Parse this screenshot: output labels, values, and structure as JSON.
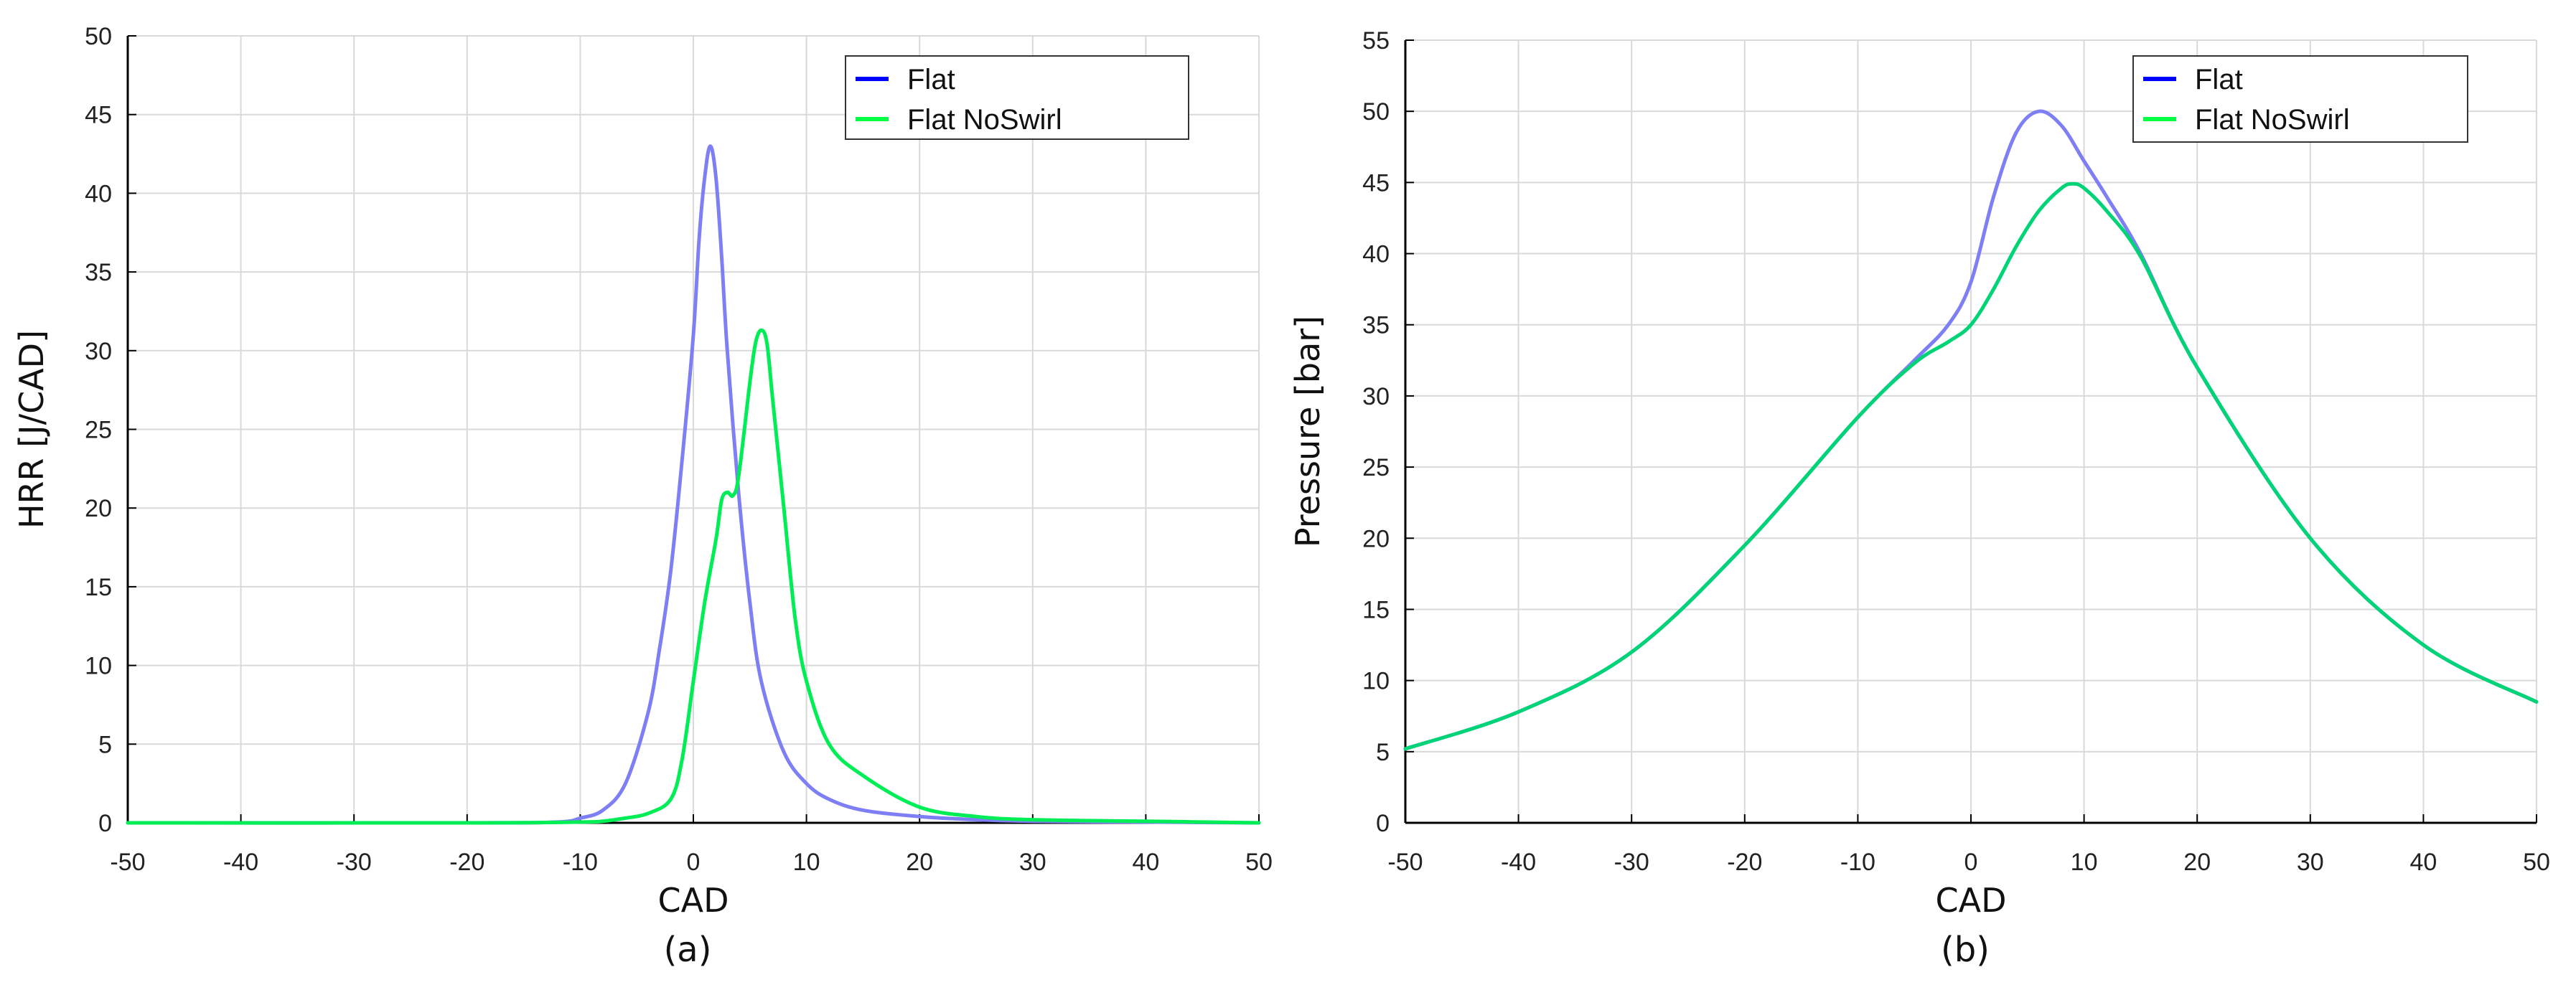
{
  "chart_data": [
    {
      "type": "line",
      "caption": "(a)",
      "xlabel": "CAD",
      "ylabel": "HRR [J/CAD]",
      "xlim": [
        -50,
        50
      ],
      "ylim": [
        0,
        50
      ],
      "xticks": [
        "-50",
        "-40",
        "-30",
        "-20",
        "-10",
        "0",
        "10",
        "20",
        "30",
        "40",
        "50"
      ],
      "yticks": [
        "0",
        "5",
        "10",
        "15",
        "20",
        "25",
        "30",
        "35",
        "40",
        "45",
        "50"
      ],
      "grid": true,
      "legend_position": "top-right",
      "legend": [
        {
          "label": "Flat",
          "color": "#0000ff"
        },
        {
          "label": "Flat NoSwirl",
          "color": "#00ff44"
        }
      ],
      "series": [
        {
          "name": "Flat",
          "color": "#7f7ff5",
          "x": [
            -50,
            -20,
            -12,
            -10,
            -8,
            -6,
            -4,
            -3,
            -2,
            -1,
            0,
            0.5,
            1,
            1.5,
            2,
            2.5,
            3,
            4,
            5,
            6,
            8,
            10,
            12,
            15,
            20,
            25,
            30,
            40,
            50
          ],
          "y": [
            0,
            0,
            0.05,
            0.3,
            0.8,
            2.5,
            7,
            11,
            16,
            23,
            31,
            37,
            41,
            43,
            41,
            36,
            30,
            21,
            14,
            9,
            4.5,
            2.5,
            1.5,
            0.8,
            0.4,
            0.2,
            0.1,
            0.05,
            0
          ]
        },
        {
          "name": "Flat NoSwirl",
          "color": "#00ee55",
          "x": [
            -50,
            -20,
            -10,
            -8,
            -6,
            -4,
            -2,
            -1,
            0,
            1,
            2,
            2.5,
            3,
            3.5,
            4,
            5,
            5.5,
            6,
            6.5,
            7,
            8,
            9,
            10,
            12,
            15,
            20,
            25,
            30,
            40,
            50
          ],
          "y": [
            0,
            0,
            0.05,
            0.1,
            0.3,
            0.6,
            1.5,
            4,
            9,
            14,
            18,
            20.5,
            21,
            20.8,
            22,
            28,
            30.5,
            31.3,
            30.5,
            27,
            20,
            13,
            9,
            5,
            3,
            1,
            0.4,
            0.2,
            0.1,
            0
          ]
        }
      ]
    },
    {
      "type": "line",
      "caption": "(b)",
      "xlabel": "CAD",
      "ylabel": "Pressure [bar]",
      "xlim": [
        -50,
        50
      ],
      "ylim": [
        0,
        55
      ],
      "xticks": [
        "-50",
        "-40",
        "-30",
        "-20",
        "-10",
        "0",
        "10",
        "20",
        "30",
        "40",
        "50"
      ],
      "yticks": [
        "0",
        "5",
        "10",
        "15",
        "20",
        "25",
        "30",
        "35",
        "40",
        "45",
        "50",
        "55"
      ],
      "grid": true,
      "legend_position": "top-right",
      "legend": [
        {
          "label": "Flat",
          "color": "#0000ff"
        },
        {
          "label": "Flat NoSwirl",
          "color": "#00ff44"
        }
      ],
      "series": [
        {
          "name": "Flat",
          "color": "#7f7ff5",
          "x": [
            -50,
            -40,
            -30,
            -20,
            -10,
            -5,
            -2,
            0,
            2,
            4,
            6,
            8,
            10,
            12,
            15,
            20,
            30,
            40,
            50
          ],
          "y": [
            5.2,
            7.8,
            12,
            19.5,
            28.5,
            32.5,
            35,
            38,
            44,
            48.5,
            50,
            49,
            46.5,
            44,
            40,
            32,
            20,
            12.5,
            8.5
          ]
        },
        {
          "name": "Flat NoSwirl",
          "color": "#00d477",
          "x": [
            -50,
            -40,
            -30,
            -20,
            -10,
            -5,
            -2,
            0,
            2,
            4,
            6,
            8,
            9,
            10,
            12,
            15,
            20,
            30,
            40,
            50
          ],
          "y": [
            5.2,
            7.8,
            12,
            19.5,
            28.5,
            32.3,
            33.8,
            35,
            37.5,
            40.5,
            43,
            44.6,
            44.9,
            44.6,
            43,
            39.8,
            32,
            20,
            12.5,
            8.5
          ]
        }
      ]
    }
  ]
}
